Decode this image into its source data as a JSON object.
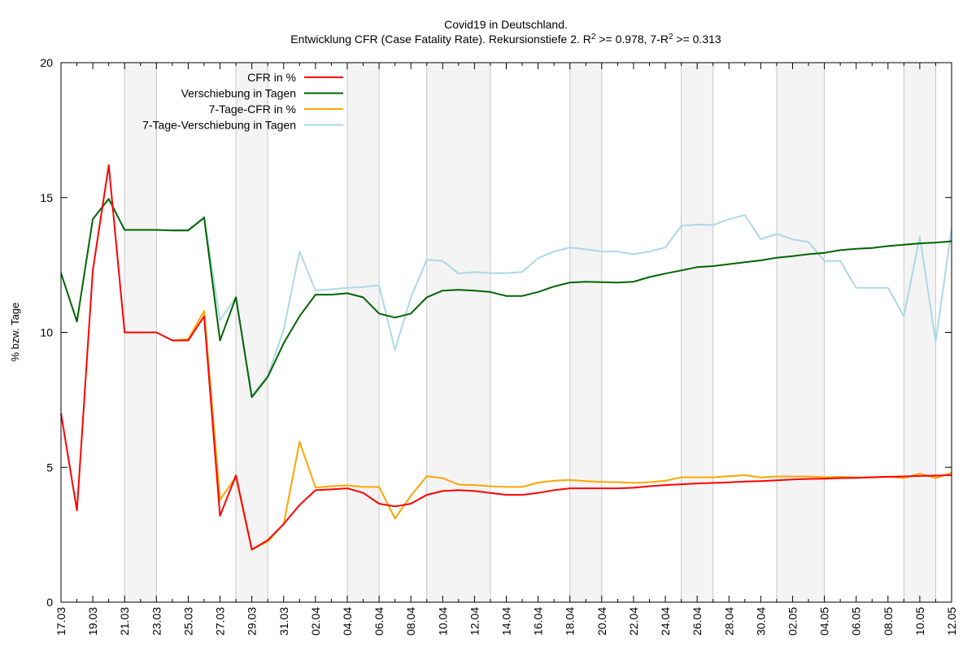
{
  "chart_data": {
    "type": "line",
    "title": "Covid19 in Deutschland.",
    "subtitle_parts": [
      "Entwicklung CFR (Case Fatality Rate). Rekursionstiefe 2. R",
      "2",
      " >= 0.978, 7-R",
      "2",
      " >= 0.313"
    ],
    "xlabel": "",
    "ylabel": "% bzw. Tage",
    "ylim": [
      0,
      20
    ],
    "yticks": [
      0,
      5,
      10,
      15,
      20
    ],
    "grid": false,
    "legend_position": "top-left",
    "x": [
      "17.03",
      "18.03",
      "19.03",
      "20.03",
      "21.03",
      "22.03",
      "23.03",
      "24.03",
      "25.03",
      "26.03",
      "27.03",
      "28.03",
      "29.03",
      "30.03",
      "31.03",
      "01.04",
      "02.04",
      "03.04",
      "04.04",
      "05.04",
      "06.04",
      "07.04",
      "08.04",
      "09.04",
      "10.04",
      "11.04",
      "12.04",
      "13.04",
      "14.04",
      "15.04",
      "16.04",
      "17.04",
      "18.04",
      "19.04",
      "20.04",
      "21.04",
      "22.04",
      "23.04",
      "24.04",
      "25.04",
      "26.04",
      "27.04",
      "28.04",
      "29.04",
      "30.04",
      "01.05",
      "02.05",
      "03.05",
      "04.05",
      "05.05",
      "06.05",
      "07.05",
      "08.05",
      "09.05",
      "10.05",
      "11.05",
      "12.05"
    ],
    "x_tick_labels": [
      "17.03",
      "19.03",
      "21.03",
      "23.03",
      "25.03",
      "27.03",
      "29.03",
      "31.03",
      "02.04",
      "04.04",
      "06.04",
      "08.04",
      "10.04",
      "12.04",
      "14.04",
      "16.04",
      "18.04",
      "20.04",
      "22.04",
      "24.04",
      "26.04",
      "28.04",
      "30.04",
      "02.05",
      "04.05",
      "06.05",
      "08.05",
      "10.05",
      "12.05"
    ],
    "weekend_shading": [
      [
        "21.03",
        "23.03"
      ],
      [
        "28.03",
        "30.03"
      ],
      [
        "04.04",
        "06.04"
      ],
      [
        "09.04",
        "13.04"
      ],
      [
        "18.04",
        "20.04"
      ],
      [
        "25.04",
        "27.04"
      ],
      [
        "01.05",
        "04.05"
      ],
      [
        "09.05",
        "11.05"
      ]
    ],
    "series": [
      {
        "name": "CFR in %",
        "color": "#ff0000",
        "values": [
          7.0,
          3.4,
          12.3,
          16.2,
          10.0,
          10.0,
          10.0,
          9.7,
          9.7,
          10.6,
          3.2,
          4.7,
          1.95,
          2.3,
          2.9,
          3.6,
          4.15,
          4.18,
          4.22,
          4.05,
          3.65,
          3.55,
          3.65,
          3.98,
          4.12,
          4.15,
          4.12,
          4.05,
          3.98,
          3.98,
          4.05,
          4.15,
          4.22,
          4.22,
          4.22,
          4.22,
          4.24,
          4.3,
          4.34,
          4.37,
          4.4,
          4.42,
          4.44,
          4.47,
          4.49,
          4.52,
          4.55,
          4.57,
          4.58,
          4.6,
          4.61,
          4.63,
          4.65,
          4.66,
          4.68,
          4.69,
          4.71
        ]
      },
      {
        "name": "Verschiebung in Tagen",
        "color": "#006400",
        "values": [
          12.2,
          10.4,
          14.2,
          14.95,
          13.8,
          13.8,
          13.8,
          13.78,
          13.78,
          14.25,
          9.7,
          11.3,
          7.6,
          8.35,
          9.6,
          10.6,
          11.4,
          11.4,
          11.45,
          11.3,
          10.7,
          10.55,
          10.7,
          11.3,
          11.55,
          11.58,
          11.55,
          11.5,
          11.35,
          11.35,
          11.5,
          11.7,
          11.85,
          11.88,
          11.86,
          11.85,
          11.88,
          12.05,
          12.18,
          12.3,
          12.42,
          12.46,
          12.53,
          12.6,
          12.67,
          12.77,
          12.83,
          12.9,
          12.95,
          13.05,
          13.1,
          13.13,
          13.2,
          13.25,
          13.3,
          13.33,
          13.38
        ]
      },
      {
        "name": "7-Tage-CFR in %",
        "color": "#ffa500",
        "values": [
          null,
          null,
          null,
          null,
          null,
          null,
          null,
          9.7,
          9.75,
          10.8,
          3.8,
          4.65,
          1.95,
          2.25,
          2.9,
          5.95,
          4.25,
          4.3,
          4.33,
          4.27,
          4.27,
          3.1,
          3.95,
          4.67,
          4.6,
          4.36,
          4.34,
          4.3,
          4.27,
          4.27,
          4.43,
          4.5,
          4.53,
          4.49,
          4.46,
          4.45,
          4.42,
          4.45,
          4.5,
          4.63,
          4.63,
          4.63,
          4.67,
          4.71,
          4.62,
          4.66,
          4.66,
          4.66,
          4.63,
          4.65,
          4.62,
          4.62,
          4.65,
          4.6,
          4.77,
          4.6,
          4.8
        ]
      },
      {
        "name": "7-Tage-Verschiebung in Tagen",
        "color": "#add8e6",
        "values": [
          null,
          null,
          null,
          null,
          null,
          null,
          null,
          13.8,
          13.8,
          14.3,
          10.45,
          11.3,
          7.65,
          8.4,
          10.1,
          13.0,
          11.55,
          11.6,
          11.65,
          11.68,
          11.75,
          9.35,
          11.3,
          12.7,
          12.65,
          12.18,
          12.24,
          12.2,
          12.2,
          12.24,
          12.75,
          13.0,
          13.15,
          13.08,
          13.0,
          13.0,
          12.9,
          13.0,
          13.15,
          13.95,
          14.0,
          13.98,
          14.2,
          14.35,
          13.45,
          13.65,
          13.45,
          13.35,
          12.65,
          12.65,
          11.65,
          11.65,
          11.65,
          10.6,
          13.55,
          9.65,
          13.85
        ]
      }
    ]
  }
}
